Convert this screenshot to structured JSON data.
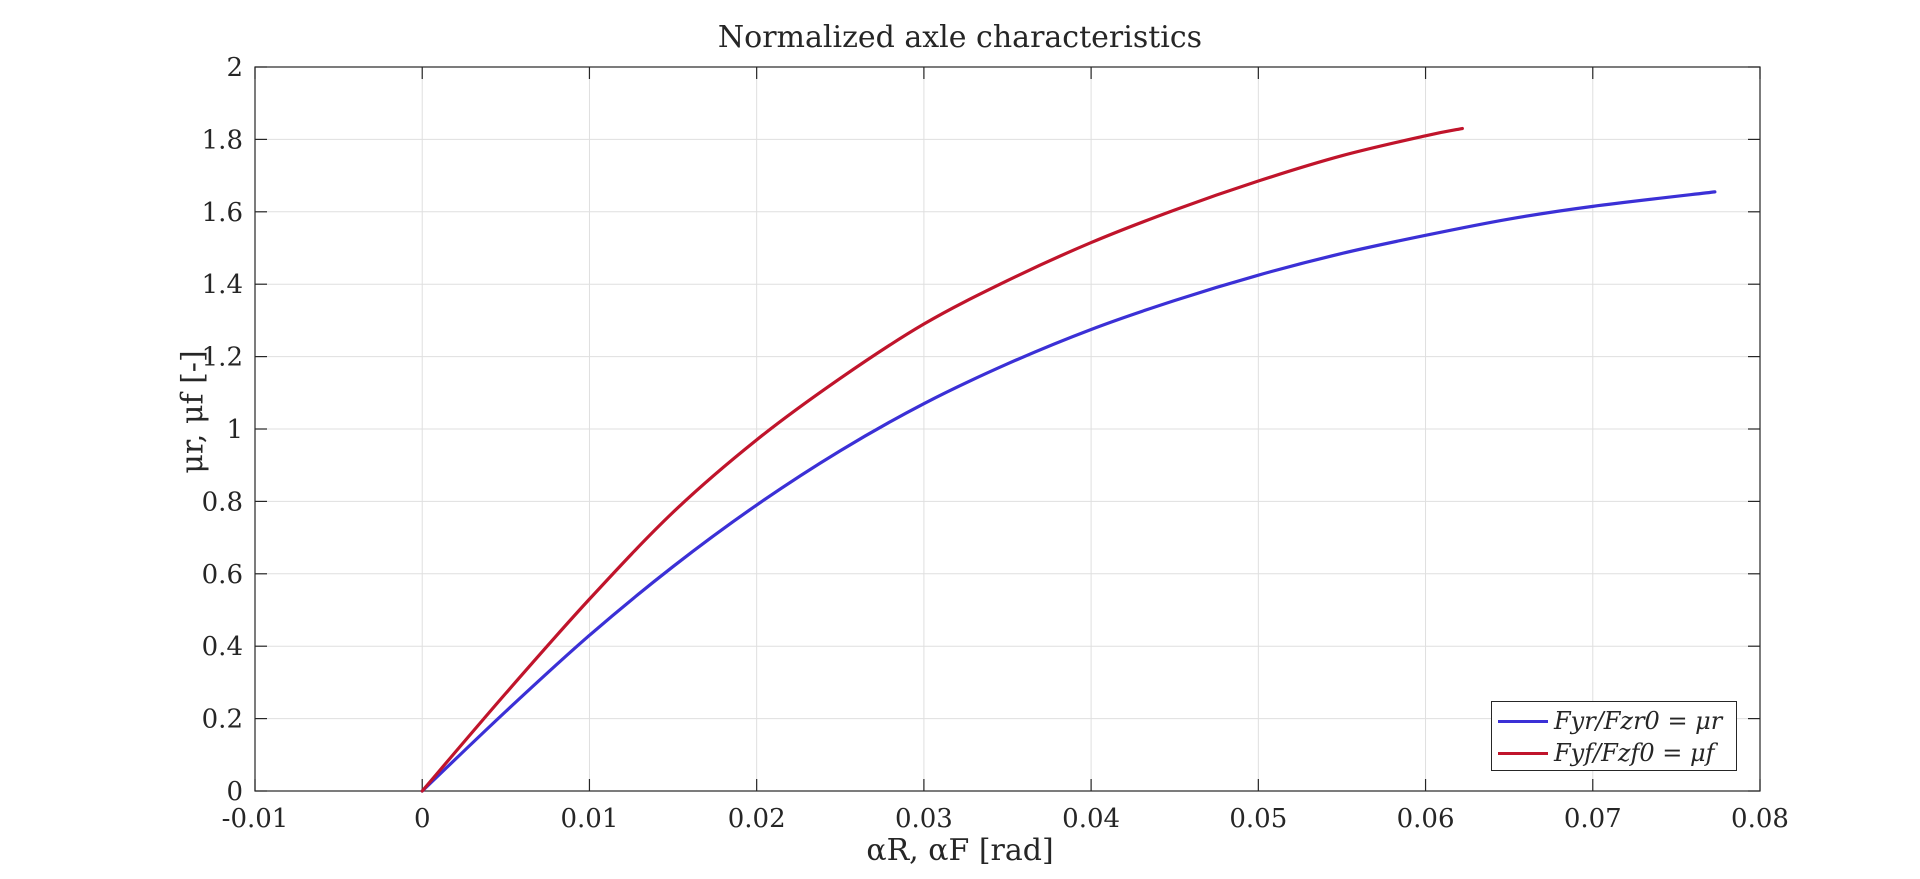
{
  "chart_data": {
    "type": "line",
    "title": "Normalized axle characteristics",
    "xlabel": "αR, αF [rad]",
    "ylabel": "μr, μf [-]",
    "xlim": [
      -0.01,
      0.08
    ],
    "ylim": [
      0,
      2
    ],
    "xticks": [
      -0.01,
      0,
      0.01,
      0.02,
      0.03,
      0.04,
      0.05,
      0.06,
      0.07,
      0.08
    ],
    "xtick_labels": [
      "-0.01",
      "0",
      "0.01",
      "0.02",
      "0.03",
      "0.04",
      "0.05",
      "0.06",
      "0.07",
      "0.08"
    ],
    "yticks": [
      0,
      0.2,
      0.4,
      0.6,
      0.8,
      1,
      1.2,
      1.4,
      1.6,
      1.8,
      2
    ],
    "ytick_labels": [
      "0",
      "0.2",
      "0.4",
      "0.6",
      "0.8",
      "1",
      "1.2",
      "1.4",
      "1.6",
      "1.8",
      "2"
    ],
    "grid": true,
    "legend_position": "bottom-right",
    "series": [
      {
        "name": "Fyr/Fzr0 = μr",
        "color": "#3b30d6",
        "x": [
          0,
          0.005,
          0.01,
          0.015,
          0.02,
          0.025,
          0.03,
          0.035,
          0.04,
          0.045,
          0.05,
          0.055,
          0.06,
          0.065,
          0.07,
          0.0773
        ],
        "y": [
          0,
          0.22,
          0.43,
          0.62,
          0.79,
          0.94,
          1.07,
          1.18,
          1.275,
          1.355,
          1.425,
          1.485,
          1.535,
          1.58,
          1.615,
          1.655
        ]
      },
      {
        "name": "Fyf/Fzf0 = μf",
        "color": "#c0142b",
        "x": [
          0,
          0.005,
          0.01,
          0.015,
          0.02,
          0.025,
          0.03,
          0.035,
          0.04,
          0.045,
          0.05,
          0.055,
          0.06,
          0.0622
        ],
        "y": [
          0,
          0.27,
          0.53,
          0.77,
          0.97,
          1.14,
          1.29,
          1.41,
          1.515,
          1.605,
          1.685,
          1.755,
          1.81,
          1.83
        ]
      }
    ]
  }
}
